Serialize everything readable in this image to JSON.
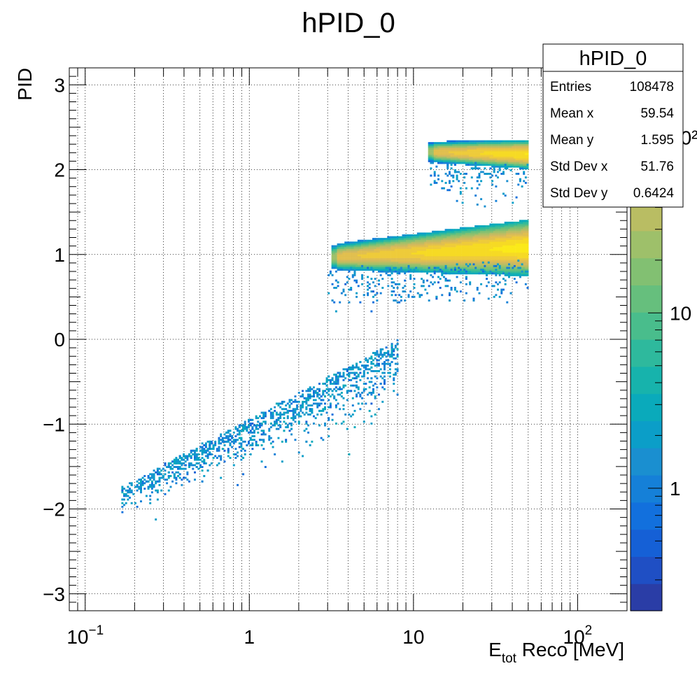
{
  "chart_data": {
    "type": "heatmap",
    "title": "hPID_0",
    "xlabel_main": "E",
    "xlabel_sub": "tot",
    "xlabel_rest": " Reco [MeV]",
    "ylabel": "PID",
    "xscale": "log",
    "xlim": [
      0.08,
      200
    ],
    "ylim": [
      -3.2,
      3.2
    ],
    "grid": true,
    "x_tick_labels": [
      {
        "value": 0.1,
        "base": "10",
        "exp": "−1"
      },
      {
        "value": 1,
        "base": "1",
        "exp": ""
      },
      {
        "value": 10,
        "base": "10",
        "exp": ""
      },
      {
        "value": 100,
        "base": "10",
        "exp": "2"
      }
    ],
    "y_ticks": [
      -3,
      -2,
      -1,
      0,
      1,
      2,
      3
    ],
    "y_tick_labels": [
      "−3",
      "−2",
      "−1",
      "0",
      "1",
      "2",
      "3"
    ],
    "colorbar": {
      "scale": "log",
      "range": [
        0.2,
        250
      ],
      "tick_labels": [
        {
          "value": 1,
          "label": "1"
        },
        {
          "value": 10,
          "label": "10"
        },
        {
          "value": 100,
          "label": "10²"
        }
      ],
      "palette": [
        "#2a3da6",
        "#1f4fc4",
        "#1560d6",
        "#1270dd",
        "#1580d8",
        "#1a8fd0",
        "#0b9ec8",
        "#0aaabb",
        "#17b3ac",
        "#2eb99d",
        "#49bd8c",
        "#66bf7d",
        "#82c072",
        "#9ec06a",
        "#b9bd63",
        "#d1b95e",
        "#e1bf4f",
        "#eecb3a",
        "#f6da24",
        "#fbe919"
      ]
    },
    "bands": [
      {
        "name": "",
        "x_start": 3.2,
        "x_end": 50,
        "y_start": 0.97,
        "y_end": 1.08,
        "width_start": 0.09,
        "width_end": 0.2,
        "peak_count": 200
      },
      {
        "name": "",
        "x_start": 12.5,
        "x_end": 50,
        "y_start": 2.21,
        "y_end": 2.18,
        "width_start": 0.07,
        "width_end": 0.1,
        "peak_count": 180
      }
    ],
    "scatter_region": {
      "x_range": [
        0.16,
        8
      ],
      "y_at_start": -1.85,
      "y_at_end": -0.1,
      "spread": 0.25
    }
  },
  "stats_box": {
    "title": "hPID_0",
    "rows": [
      {
        "label": "Entries",
        "value": "108478"
      },
      {
        "label": "Mean x",
        "value": "59.54"
      },
      {
        "label": "Mean y",
        "value": "1.595"
      },
      {
        "label": "Std Dev x",
        "value": "51.76"
      },
      {
        "label": "Std Dev y",
        "value": "0.6424"
      }
    ]
  }
}
